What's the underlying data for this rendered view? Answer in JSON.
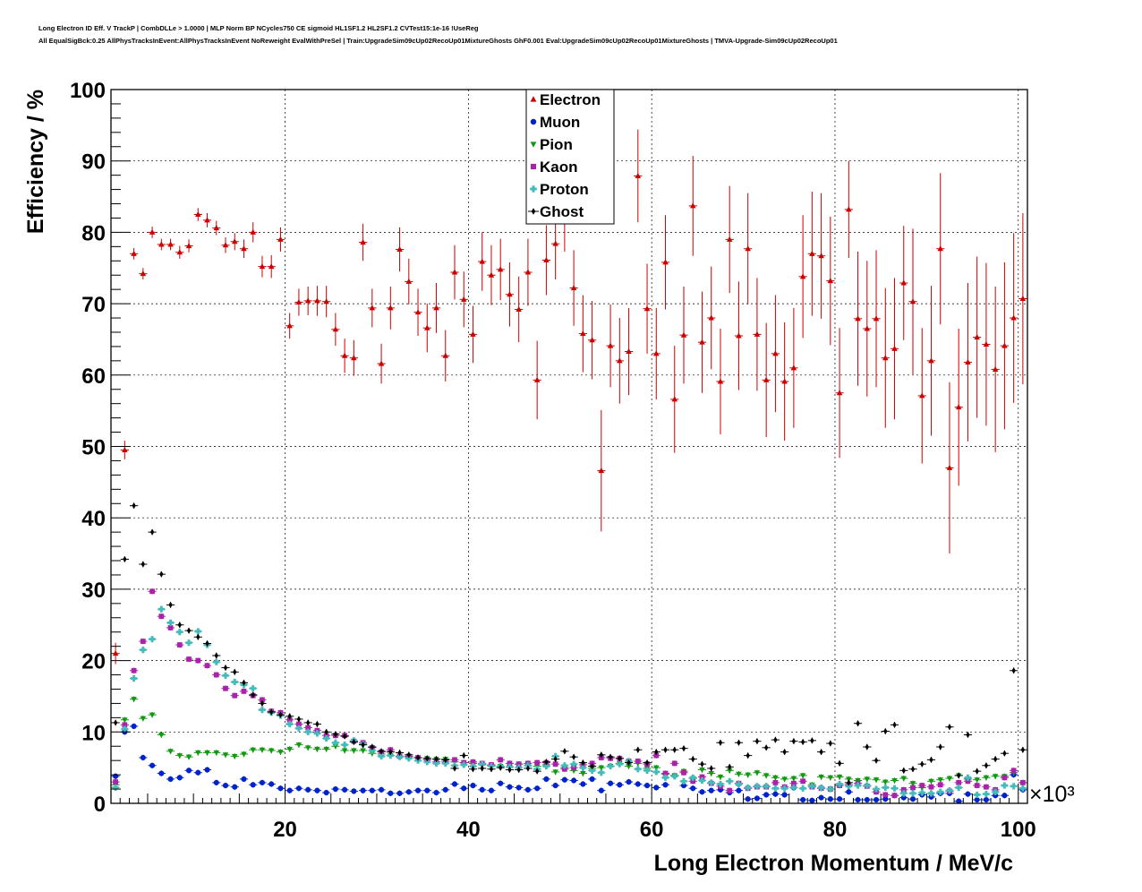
{
  "title": "Long Electron ID Eff. V TrackP | CombDLLe > 1.0000 | MLP Norm BP NCycles750 CE sigmoid HL1SF1.2 HL2SF1.2 CVTest15:1e-16 !UseReg",
  "subtitle": "All EqualSigBck:0.25 AllPhysTracksInEvent:AllPhysTracksInEvent NoReweight EvalWithPreSel | Train:UpgradeSim09cUp02RecoUp01MixtureGhosts GhF0.001 Eval:UpgradeSim09cUp02RecoUp01MixtureGhosts | TMVA-Upgrade-Sim09cUp02RecoUp01",
  "chart_data": {
    "type": "scatter",
    "xlabel": "Long Electron Momentum / MeV/c",
    "ylabel": "Efficiency / %",
    "x_exponent_label": "×10³",
    "xlim": [
      1,
      101
    ],
    "ylim": [
      0,
      100
    ],
    "x_ticks": [
      20,
      40,
      60,
      80,
      100
    ],
    "y_ticks": [
      0,
      10,
      20,
      30,
      40,
      50,
      60,
      70,
      80,
      90,
      100
    ],
    "grid": true,
    "legend_position": "top-center",
    "x": [
      1.5,
      2.5,
      3.5,
      4.5,
      5.5,
      6.5,
      7.5,
      8.5,
      9.5,
      10.5,
      11.5,
      12.5,
      13.5,
      14.5,
      15.5,
      16.5,
      17.5,
      18.5,
      19.5,
      20.5,
      21.5,
      22.5,
      23.5,
      24.5,
      25.5,
      26.5,
      27.5,
      28.5,
      29.5,
      30.5,
      31.5,
      32.5,
      33.5,
      34.5,
      35.5,
      36.5,
      37.5,
      38.5,
      39.5,
      40.5,
      41.5,
      42.5,
      43.5,
      44.5,
      45.5,
      46.5,
      47.5,
      48.5,
      49.5,
      50.5,
      51.5,
      52.5,
      53.5,
      54.5,
      55.5,
      56.5,
      57.5,
      58.5,
      59.5,
      60.5,
      61.5,
      62.5,
      63.5,
      64.5,
      65.5,
      66.5,
      67.5,
      68.5,
      69.5,
      70.5,
      71.5,
      72.5,
      73.5,
      74.5,
      75.5,
      76.5,
      77.5,
      78.5,
      79.5,
      80.5,
      81.5,
      82.5,
      83.5,
      84.5,
      85.5,
      86.5,
      87.5,
      88.5,
      89.5,
      90.5,
      91.5,
      92.5,
      93.5,
      94.5,
      95.5,
      96.5,
      97.5,
      98.5,
      99.5,
      100.5
    ],
    "series": [
      {
        "name": "Electron",
        "color": "#cc0000",
        "marker": "triangle-up",
        "values": [
          21,
          49.5,
          77,
          74.2,
          80,
          78.3,
          78.3,
          77.2,
          78.1,
          82.5,
          81.7,
          80.6,
          78.2,
          78.7,
          77.7,
          80,
          75.2,
          75.2,
          79,
          66.9,
          70.2,
          70.4,
          70.4,
          70.3,
          66.4,
          62.7,
          62.4,
          78.6,
          69.4,
          61.6,
          69.4,
          77.6,
          73.1,
          68.8,
          66.6,
          69.4,
          62.7,
          74.4,
          70.6,
          65.7,
          75.9,
          74,
          74.8,
          71.3,
          69.2,
          74.4,
          59.3,
          76.1,
          78.4,
          82.5,
          72.2,
          65.8,
          64.9,
          46.6,
          64.1,
          62,
          63.3,
          87.9,
          69.3,
          63,
          75.8,
          56.6,
          65.6,
          83.7,
          64.6,
          68,
          59.1,
          79,
          65.5,
          77.7,
          65.7,
          59.3,
          63,
          59.1,
          61,
          73.8,
          77,
          76.7,
          73.2,
          57.5,
          83.2,
          67.9,
          66.5,
          67.9,
          62.4,
          63.7,
          72.9,
          70.3,
          57.1,
          62,
          77.7,
          47,
          55.5,
          61.8,
          65.3,
          64.3,
          60.8,
          64.1,
          68,
          70.7
        ],
        "errors": [
          1.5,
          1.3,
          0.8,
          0.8,
          0.8,
          0.8,
          0.8,
          0.9,
          0.9,
          0.9,
          1.0,
          1.0,
          1.1,
          1.2,
          1.3,
          1.4,
          1.5,
          1.6,
          1.7,
          1.8,
          1.9,
          2.0,
          2.1,
          2.2,
          2.3,
          2.4,
          2.5,
          2.6,
          2.7,
          2.8,
          3.0,
          3.1,
          3.2,
          3.3,
          3.4,
          3.5,
          3.6,
          3.8,
          3.9,
          4.0,
          4.1,
          4.2,
          4.3,
          4.5,
          4.6,
          4.7,
          5.5,
          4.9,
          5.0,
          5.2,
          5.3,
          5.4,
          5.5,
          8.5,
          5.8,
          6.0,
          6.1,
          6.5,
          6.3,
          6.4,
          6.6,
          7.5,
          6.8,
          7.0,
          7.1,
          7.2,
          7.4,
          7.5,
          7.6,
          7.8,
          7.9,
          8.0,
          8.2,
          8.3,
          8.4,
          8.6,
          8.7,
          8.8,
          9.0,
          9.1,
          6.8,
          9.4,
          9.5,
          9.6,
          9.8,
          9.9,
          8.0,
          10.2,
          9.5,
          10.5,
          10.6,
          12.0,
          11.0,
          11.1,
          11.3,
          11.4,
          11.6,
          11.7,
          11.9,
          12.0
        ]
      },
      {
        "name": "Muon",
        "color": "#0022cc",
        "marker": "circle",
        "values": [
          3.8,
          10,
          10.8,
          6.4,
          5.3,
          4.2,
          3.4,
          3.6,
          4.6,
          4.3,
          4.7,
          2.9,
          2.5,
          2.3,
          3.4,
          2.6,
          2.9,
          2.7,
          2.1,
          1.8,
          2.1,
          1.9,
          1.8,
          1.5,
          2,
          1.9,
          1.7,
          1.8,
          1.8,
          1.9,
          1.4,
          1.4,
          1.6,
          1.8,
          1.8,
          1.5,
          1.9,
          2.7,
          2.1,
          2.5,
          1.9,
          1.8,
          2.8,
          2.3,
          2.2,
          1.9,
          2.1,
          3.4,
          2.5,
          3.3,
          3.2,
          2.7,
          3.4,
          1.8,
          2.8,
          2.6,
          3,
          2.7,
          2.5,
          2.2,
          2.6,
          3.9,
          2.5,
          2.1,
          1.6,
          1.8,
          1.9,
          1.5,
          1.8,
          0.6,
          0.7,
          1.2,
          1.3,
          1.2,
          2.2,
          0.5,
          0.4,
          0.8,
          0.6,
          0.6,
          1.6,
          0.5,
          0.5,
          0.5,
          0.6,
          1.1,
          0.8,
          0.6,
          1.2,
          0.9,
          1.4,
          1.4,
          0.3,
          1.3,
          0.5,
          0.5,
          1.1,
          1.1,
          4,
          1.9
        ]
      },
      {
        "name": "Pion",
        "color": "#119911",
        "marker": "triangle-down",
        "values": [
          2.6,
          11.7,
          14.6,
          11.9,
          12.4,
          9.6,
          7.3,
          6.7,
          6.5,
          7.1,
          7.1,
          7.1,
          6.8,
          6.6,
          6.9,
          7.5,
          7.5,
          7.4,
          7.2,
          7.6,
          8.2,
          7.8,
          7.6,
          7.6,
          8,
          7.4,
          7.4,
          7.4,
          7,
          6.9,
          6.7,
          6.6,
          6.5,
          6.4,
          6.3,
          6.2,
          6.2,
          5.8,
          5.7,
          5.6,
          5.4,
          5.3,
          5.2,
          5.1,
          5.5,
          5.3,
          5.2,
          5.4,
          4.4,
          5,
          4.6,
          4.2,
          4.9,
          5,
          5.2,
          5.6,
          5.2,
          5.6,
          4.9,
          5,
          4.1,
          3.9,
          4.5,
          3.5,
          4.7,
          4.2,
          3.7,
          4.6,
          4.1,
          4,
          4.3,
          3.9,
          3.6,
          3.4,
          3.5,
          3.9,
          2.6,
          3.7,
          3.6,
          3.7,
          3.4,
          3.2,
          3.4,
          3.3,
          3,
          3.2,
          3.5,
          2.8,
          2.2,
          3.1,
          3.3,
          3.5,
          3.9,
          3.4,
          3.3,
          3.6,
          3.8,
          3.8,
          4.3,
          2.9
        ]
      },
      {
        "name": "Kaon",
        "color": "#aa22aa",
        "marker": "square",
        "values": [
          3,
          11,
          18.6,
          22.7,
          29.7,
          26.2,
          24.6,
          22.2,
          20.2,
          20,
          19.3,
          18,
          16.1,
          15.1,
          15.7,
          15.1,
          14.5,
          12.9,
          12.7,
          11.7,
          11.1,
          10.6,
          10.2,
          9.5,
          9.5,
          9.5,
          8.7,
          8.5,
          7.8,
          7.2,
          7.5,
          6.6,
          6.6,
          6.4,
          6.1,
          5.8,
          5.8,
          6.1,
          5.7,
          5.8,
          5.6,
          5.4,
          6.1,
          5.6,
          5.5,
          5.6,
          5.7,
          5.7,
          5.5,
          4.8,
          5,
          5.4,
          5.6,
          6.4,
          6.3,
          6.3,
          5.9,
          5.9,
          5.5,
          6.7,
          4.2,
          5.6,
          4.3,
          3.1,
          3.7,
          2.8,
          2.4,
          1.8,
          2.8,
          2.1,
          2.3,
          2.3,
          2.9,
          2.3,
          2.8,
          3.1,
          2.3,
          2.1,
          2,
          2.5,
          2.6,
          2.8,
          2.4,
          1.6,
          1.2,
          1.1,
          1.9,
          2.2,
          2.5,
          2.3,
          2.6,
          1.7,
          2.9,
          3.1,
          2.5,
          2.3,
          1.9,
          3.6,
          4.6,
          2.9
        ]
      },
      {
        "name": "Proton",
        "color": "#44bbbb",
        "marker": "cross",
        "values": [
          2.2,
          10.4,
          17.5,
          21.5,
          23,
          27.2,
          25.3,
          24,
          22.5,
          24.1,
          22.2,
          19.8,
          17.9,
          17,
          16.6,
          16.1,
          13.1,
          12.7,
          12.3,
          11.1,
          10.5,
          10,
          9.8,
          9.1,
          8.5,
          8.2,
          8.8,
          8.3,
          7.4,
          6.6,
          6.7,
          6.5,
          6.3,
          6,
          5.8,
          5.6,
          5.6,
          5.3,
          5.4,
          5.2,
          5.5,
          5.2,
          5.2,
          5.1,
          5,
          5.3,
          4.8,
          5.2,
          6.6,
          5.3,
          5.5,
          5,
          4.6,
          4.3,
          5.2,
          5.5,
          5.9,
          4.8,
          4.6,
          4.4,
          3.6,
          3.8,
          3.1,
          3.6,
          3.2,
          2.9,
          2.7,
          3.1,
          2.7,
          2.2,
          2.4,
          2.4,
          2.1,
          2.1,
          2.2,
          2.1,
          2.4,
          2.2,
          2,
          2.7,
          2.4,
          2.5,
          2.5,
          2,
          2.2,
          2.1,
          1.4,
          1.4,
          1.5,
          1.4,
          1.6,
          1.8,
          2.2,
          3.6,
          1.2,
          1.3,
          1.6,
          2.5,
          2.4,
          2.1
        ]
      },
      {
        "name": "Ghost",
        "color": "#000000",
        "marker": "diamond",
        "values": [
          11.3,
          34.2,
          41.7,
          33.5,
          38,
          32.1,
          27.8,
          25,
          24.2,
          23.3,
          22.4,
          20.7,
          19,
          18.4,
          16.9,
          15.2,
          14,
          12.8,
          12.4,
          12.2,
          11.8,
          11.3,
          11.1,
          10,
          9.7,
          9.4,
          8.6,
          8.2,
          7.9,
          7.3,
          7.2,
          7.1,
          6.8,
          6.4,
          6.3,
          6.2,
          6.1,
          4.9,
          6.7,
          4.8,
          4.9,
          4.8,
          5,
          4.7,
          4.7,
          4.9,
          4.5,
          5.8,
          6.2,
          7.3,
          6.5,
          5.7,
          5.2,
          6.8,
          6.5,
          6.3,
          5.7,
          7.5,
          5.7,
          7.2,
          7.5,
          7.5,
          7.7,
          6.2,
          5.5,
          4.9,
          8.5,
          5.1,
          8.5,
          6.7,
          8.7,
          7.8,
          8.9,
          7.2,
          8.7,
          8.6,
          8.8,
          7.2,
          8.4,
          5.6,
          2.9,
          11.2,
          7.9,
          6,
          10.1,
          11,
          4.6,
          4.8,
          5.5,
          6.1,
          7.9,
          10.7,
          3.9,
          9.6,
          4.5,
          5.3,
          6.2,
          7,
          18.6,
          7.5
        ]
      }
    ]
  }
}
